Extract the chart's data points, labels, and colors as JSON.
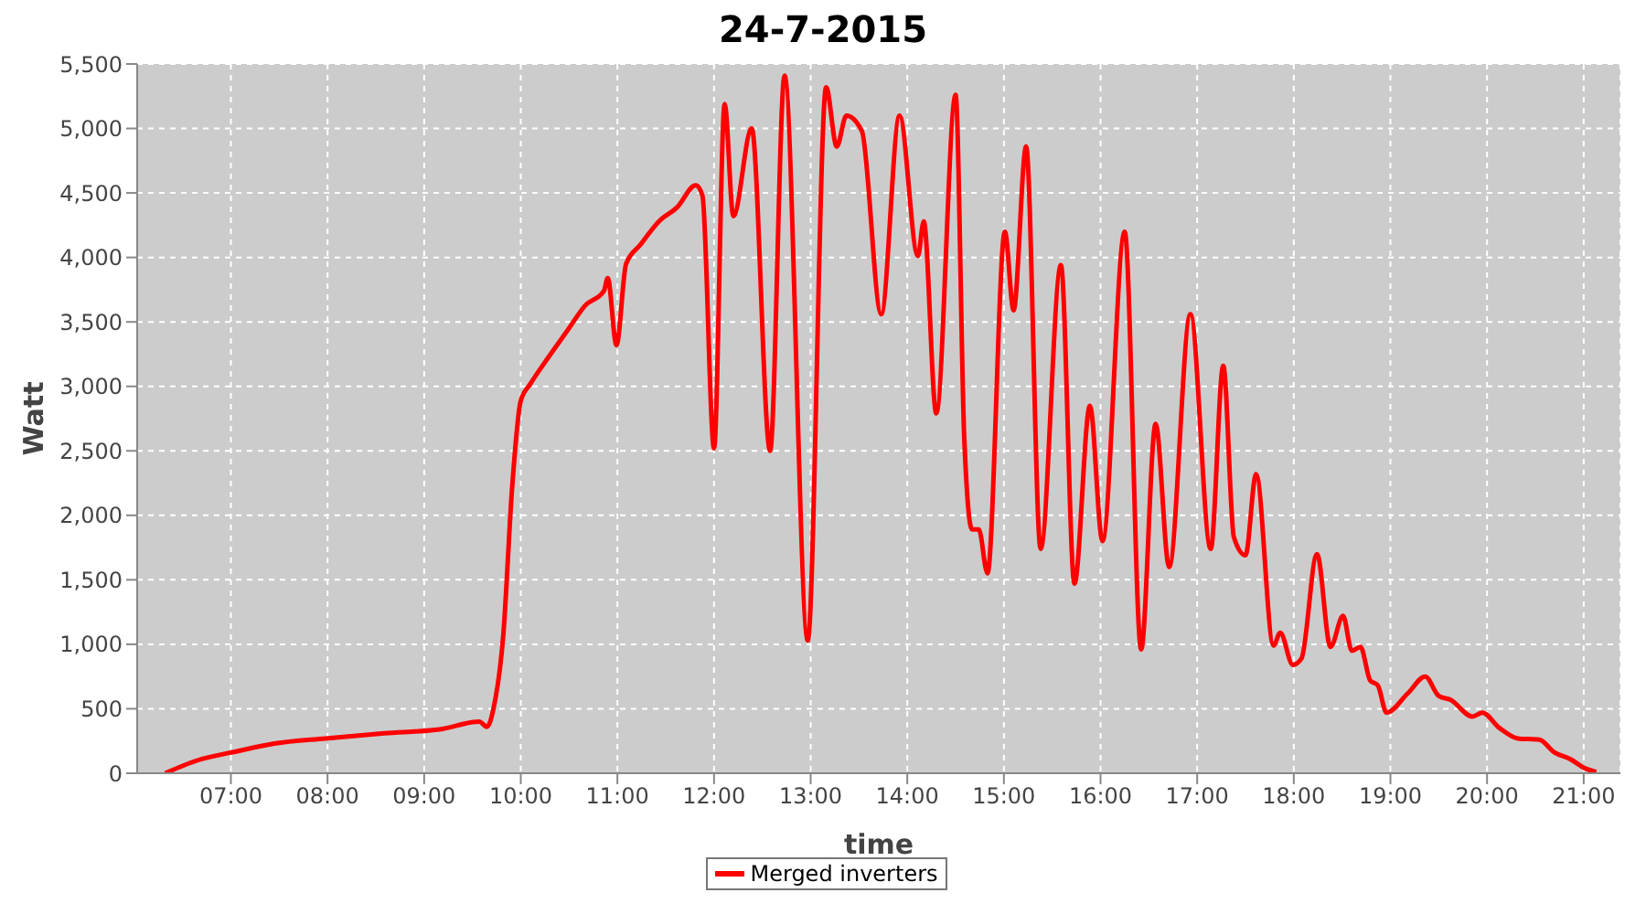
{
  "chart_data": {
    "type": "line",
    "title": "24-7-2015",
    "xlabel": "time",
    "ylabel": "Watt",
    "xlim": [
      6.03,
      21.38
    ],
    "xticks": [
      {
        "value": 7,
        "label": "07:00"
      },
      {
        "value": 8,
        "label": "08:00"
      },
      {
        "value": 9,
        "label": "09:00"
      },
      {
        "value": 10,
        "label": "10:00"
      },
      {
        "value": 11,
        "label": "11:00"
      },
      {
        "value": 12,
        "label": "12:00"
      },
      {
        "value": 13,
        "label": "13:00"
      },
      {
        "value": 14,
        "label": "14:00"
      },
      {
        "value": 15,
        "label": "15:00"
      },
      {
        "value": 16,
        "label": "16:00"
      },
      {
        "value": 17,
        "label": "17:00"
      },
      {
        "value": 18,
        "label": "18:00"
      },
      {
        "value": 19,
        "label": "19:00"
      },
      {
        "value": 20,
        "label": "20:00"
      },
      {
        "value": 21,
        "label": "21:00"
      }
    ],
    "ylim": [
      0,
      5500
    ],
    "yticks": [
      0,
      500,
      {
        "value": 1000,
        "label": "1,000"
      },
      {
        "value": 1500,
        "label": "1,500"
      },
      {
        "value": 2000,
        "label": "2,000"
      },
      {
        "value": 2500,
        "label": "2,500"
      },
      {
        "value": 3000,
        "label": "3,000"
      },
      {
        "value": 3500,
        "label": "3,500"
      },
      {
        "value": 4000,
        "label": "4,000"
      },
      {
        "value": 4500,
        "label": "4,500"
      },
      {
        "value": 5000,
        "label": "5,000"
      },
      {
        "value": 5500,
        "label": "5,500"
      }
    ],
    "grid": true,
    "legend": "bottom",
    "x": [
      6.32,
      6.51,
      6.7,
      7.0,
      7.45,
      7.98,
      8.59,
      9.16,
      9.57,
      9.65,
      9.72,
      9.82,
      9.91,
      10.0,
      10.1,
      10.29,
      10.48,
      10.67,
      10.86,
      10.9,
      10.99,
      11.09,
      11.24,
      11.43,
      11.62,
      11.81,
      11.88,
      12.0,
      12.11,
      12.2,
      12.39,
      12.58,
      12.73,
      12.97,
      13.16,
      13.27,
      13.37,
      13.53,
      13.73,
      13.92,
      14.11,
      14.17,
      14.3,
      14.5,
      14.59,
      14.67,
      14.74,
      14.83,
      15.01,
      15.1,
      15.23,
      15.38,
      15.59,
      15.73,
      15.89,
      16.02,
      16.25,
      16.42,
      16.57,
      16.71,
      16.93,
      17.14,
      17.27,
      17.38,
      17.5,
      17.61,
      17.79,
      17.86,
      17.99,
      18.08,
      18.24,
      18.38,
      18.51,
      18.6,
      18.69,
      18.79,
      18.87,
      18.96,
      19.18,
      19.36,
      19.5,
      19.62,
      19.85,
      19.95,
      20.13,
      20.32,
      20.54,
      20.7,
      20.86,
      21.01,
      21.13
    ],
    "series": [
      {
        "name": "Merged inverters",
        "color": "#ff0000",
        "values": [
          0,
          60,
          110,
          160,
          230,
          270,
          310,
          340,
          400,
          360,
          510,
          1080,
          2210,
          2890,
          3020,
          3230,
          3430,
          3630,
          3740,
          3840,
          3320,
          3950,
          4100,
          4280,
          4390,
          4560,
          4480,
          2520,
          5190,
          4320,
          5000,
          2500,
          5410,
          1030,
          5320,
          4860,
          5100,
          4980,
          3560,
          5100,
          4010,
          4280,
          2790,
          5260,
          2590,
          1890,
          1890,
          1550,
          4200,
          3590,
          4860,
          1740,
          3940,
          1470,
          2850,
          1800,
          4200,
          960,
          2710,
          1600,
          3560,
          1740,
          3160,
          1830,
          1690,
          2320,
          990,
          1090,
          840,
          890,
          1700,
          980,
          1220,
          950,
          980,
          720,
          680,
          470,
          620,
          750,
          600,
          570,
          440,
          470,
          350,
          270,
          260,
          160,
          110,
          40,
          10
        ]
      }
    ]
  }
}
